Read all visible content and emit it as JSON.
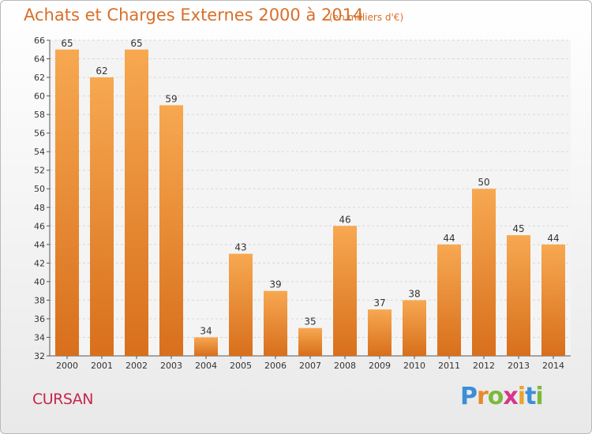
{
  "header": {
    "title": "Achats et Charges Externes 2000 à 2014",
    "subtitle": "(en milliers d'€)"
  },
  "footer": {
    "town": "CURSAN",
    "logo": {
      "text": "Proxiti",
      "letters": [
        "P",
        "r",
        "o",
        "x",
        "i",
        "t",
        "i"
      ]
    }
  },
  "colors": {
    "bar_light": "#f7a851",
    "bar_dark": "#d86f1c",
    "title": "#d86f29",
    "town": "#c6274b",
    "grid": "#d7d7d7"
  },
  "chart_data": {
    "type": "bar",
    "title": "Achats et Charges Externes 2000 à 2014",
    "subtitle": "(en milliers d'€)",
    "xlabel": "",
    "ylabel": "",
    "categories": [
      "2000",
      "2001",
      "2002",
      "2003",
      "2004",
      "2005",
      "2006",
      "2007",
      "2008",
      "2009",
      "2010",
      "2011",
      "2012",
      "2013",
      "2014"
    ],
    "values": [
      65,
      62,
      65,
      59,
      34,
      43,
      39,
      35,
      46,
      37,
      38,
      44,
      50,
      45,
      44
    ],
    "ylim": [
      32,
      66
    ],
    "yticks": [
      32,
      34,
      36,
      38,
      40,
      42,
      44,
      46,
      48,
      50,
      52,
      54,
      56,
      58,
      60,
      62,
      64,
      66
    ],
    "grid": true,
    "data_labels": true
  }
}
